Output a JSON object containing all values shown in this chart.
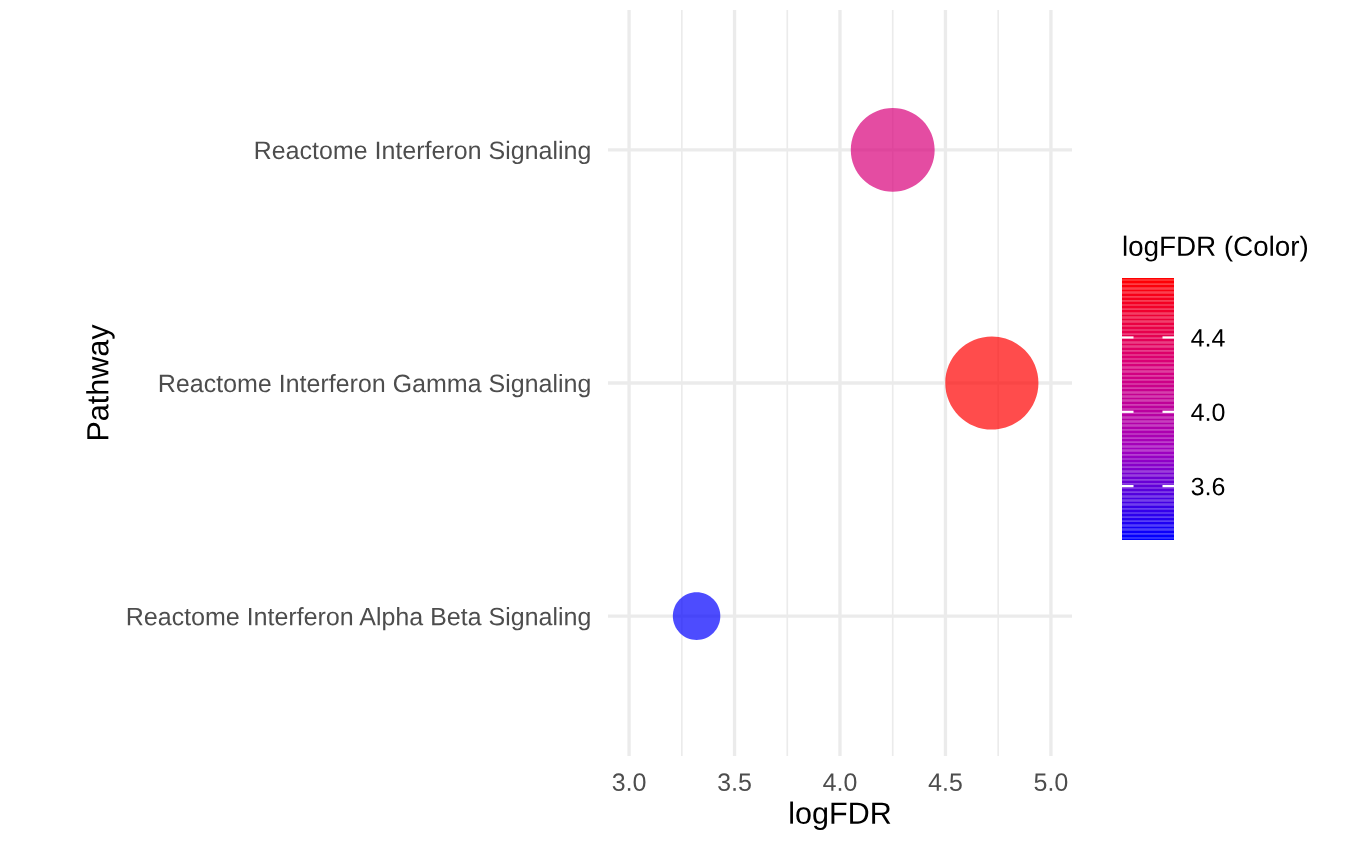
{
  "chart_data": {
    "type": "bubble",
    "xlabel": "logFDR",
    "ylabel": "Pathway",
    "clabel": "logFDR (Color)",
    "categories": [
      "Reactome Interferon Signaling",
      "Reactome Interferon Gamma Signaling",
      "Reactome Interferon Alpha Beta Signaling"
    ],
    "orientation": "horizontal",
    "values": [
      4.25,
      4.72,
      3.32
    ],
    "cvalues": [
      4.25,
      4.72,
      3.32
    ],
    "sizes": [
      0.81,
      1,
      0.26
    ],
    "xlim": [
      2.9,
      5.1
    ],
    "xticks": [
      {
        "value": 3.0,
        "label": "3.0"
      },
      {
        "value": 3.5,
        "label": "3.5"
      },
      {
        "value": 4.0,
        "label": "4.0"
      },
      {
        "value": 4.5,
        "label": "4.5"
      },
      {
        "value": 5.0,
        "label": "5.0"
      }
    ],
    "clim": [
      3.31,
      4.72
    ],
    "cticks": [
      {
        "value": 3.6,
        "label": "3.6"
      },
      {
        "value": 4.0,
        "label": "4.0"
      },
      {
        "value": 4.4,
        "label": "4.4"
      }
    ],
    "grid": true,
    "legend": false
  }
}
